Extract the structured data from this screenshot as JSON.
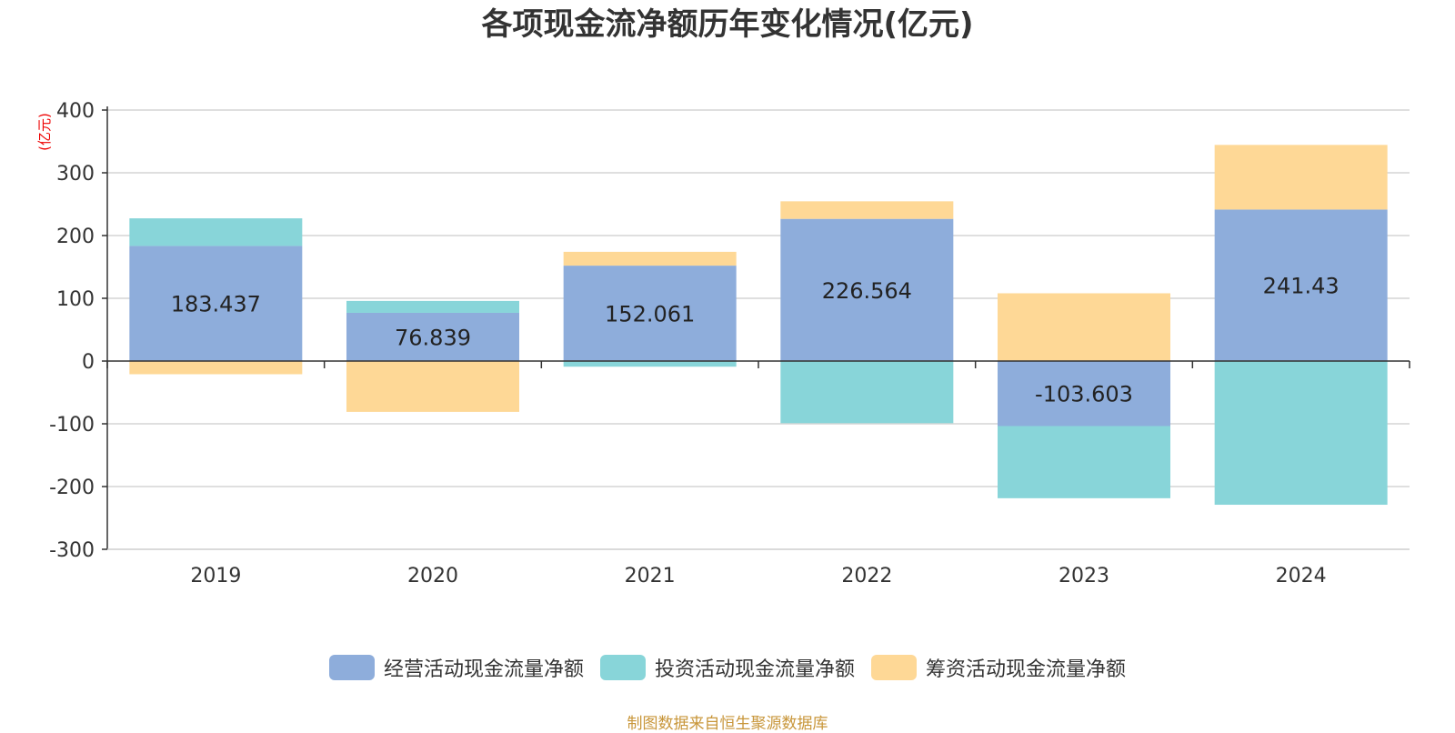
{
  "chart_data": {
    "type": "bar",
    "stacked": true,
    "title": "各项现金流净额历年变化情况(亿元)",
    "ylabel": "(亿元)",
    "ylim": [
      -300,
      400
    ],
    "yticks": [
      400,
      300,
      200,
      100,
      0,
      -100,
      -200,
      -300
    ],
    "grid": true,
    "legend_position": "bottom",
    "categories": [
      "2019",
      "2020",
      "2021",
      "2022",
      "2023",
      "2024"
    ],
    "series": [
      {
        "name": "经营活动现金流量净额",
        "color": "#8eaddb",
        "values": [
          183.437,
          76.839,
          152.061,
          226.564,
          -103.603,
          241.43
        ],
        "labels": [
          "183.437",
          "76.839",
          "152.061",
          "226.564",
          "-103.603",
          "241.43"
        ]
      },
      {
        "name": "投资活动现金流量净额",
        "color": "#88d5d9",
        "values": [
          44,
          19,
          -9,
          -99,
          -115,
          -229
        ]
      },
      {
        "name": "筹资活动现金流量净额",
        "color": "#fed896",
        "values": [
          -21,
          -81,
          22,
          28,
          108,
          103
        ]
      }
    ]
  },
  "footer": "制图数据来自恒生聚源数据库"
}
